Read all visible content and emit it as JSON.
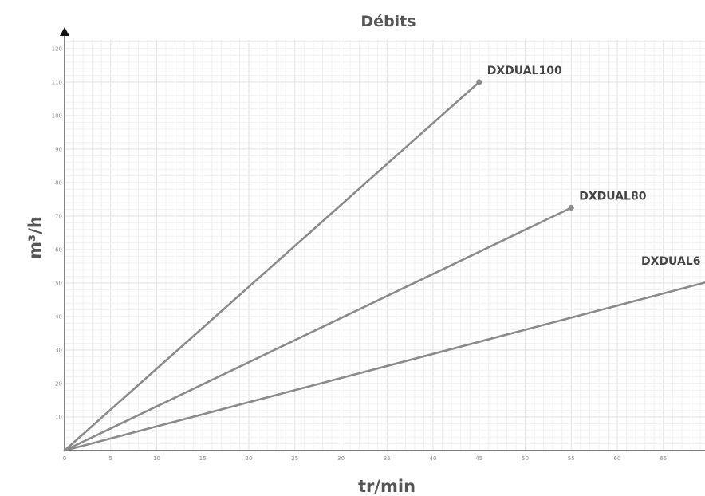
{
  "chart_data": {
    "type": "line",
    "title": "Débits",
    "xlabel": "tr/min",
    "ylabel": "m³/h",
    "xlim": [
      0,
      70
    ],
    "ylim": [
      0,
      120
    ],
    "x_ticks": [
      "0",
      "5",
      "10",
      "15",
      "20",
      "25",
      "30",
      "35",
      "40",
      "45",
      "50",
      "55",
      "60",
      "65"
    ],
    "y_ticks": [
      "10",
      "20",
      "30",
      "40",
      "50",
      "60",
      "70",
      "80",
      "90",
      "100",
      "110",
      "120"
    ],
    "grid": true,
    "series": [
      {
        "name": "DXDUAL100",
        "x": [
          0,
          45
        ],
        "y": [
          0,
          110
        ],
        "end_marker": true
      },
      {
        "name": "DXDUAL80",
        "x": [
          0,
          55
        ],
        "y": [
          0,
          72.5
        ],
        "end_marker": true
      },
      {
        "name": "DXDUAL6",
        "x": [
          0,
          70
        ],
        "y": [
          0,
          50.5
        ],
        "end_marker": false
      }
    ],
    "colors": {
      "line": "#8a8a8a",
      "grid_major": "#e2e2e2",
      "grid_minor": "#f0f0f0",
      "axis": "#333333"
    }
  }
}
